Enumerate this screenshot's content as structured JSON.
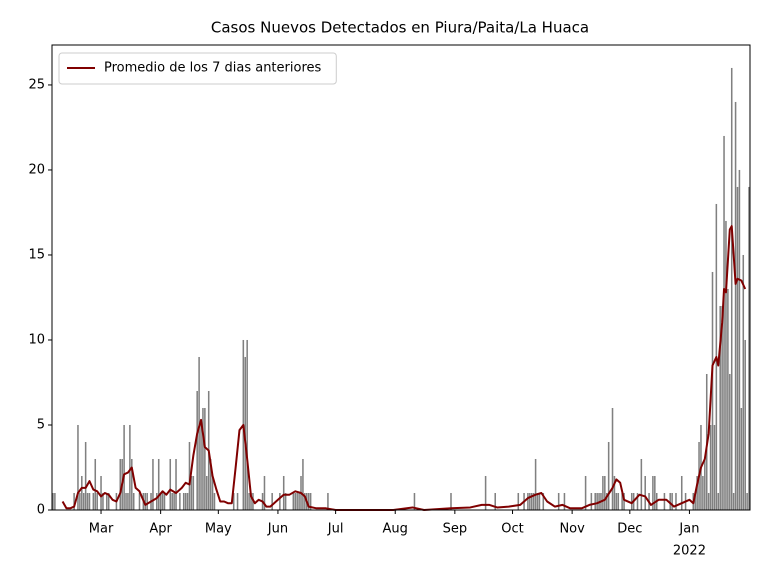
{
  "chart_data": {
    "type": "bar",
    "title": "Casos Nuevos Detectados en Piura/Paita/La Huaca",
    "xlim": [
      2.5,
      365.5
    ],
    "ylim": [
      0,
      27.35
    ],
    "yticks": [
      0,
      5,
      10,
      15,
      20,
      25
    ],
    "xticks": [
      {
        "value": 28,
        "label": "Mar"
      },
      {
        "value": 59,
        "label": "Apr"
      },
      {
        "value": 89,
        "label": "May"
      },
      {
        "value": 120,
        "label": "Jun"
      },
      {
        "value": 150,
        "label": "Jul"
      },
      {
        "value": 181,
        "label": "Aug"
      },
      {
        "value": 212,
        "label": "Sep"
      },
      {
        "value": 242,
        "label": "Oct"
      },
      {
        "value": 273,
        "label": "Nov"
      },
      {
        "value": 303,
        "label": "Dec"
      },
      {
        "value": 334,
        "label": "Jan"
      }
    ],
    "x_year_label": "2022",
    "legend": "upper left",
    "series": [
      {
        "type": "bar",
        "color": "#808080",
        "x": [
          3,
          4,
          5,
          6,
          7,
          8,
          9,
          10,
          11,
          12,
          13,
          14,
          15,
          16,
          17,
          18,
          19,
          20,
          21,
          22,
          23,
          24,
          25,
          26,
          27,
          28,
          29,
          30,
          31,
          32,
          33,
          34,
          35,
          36,
          37,
          38,
          39,
          40,
          41,
          42,
          43,
          44,
          45,
          46,
          47,
          48,
          49,
          50,
          51,
          52,
          53,
          54,
          55,
          56,
          57,
          58,
          59,
          60,
          61,
          62,
          63,
          64,
          65,
          66,
          67,
          68,
          69,
          70,
          71,
          72,
          73,
          74,
          75,
          76,
          77,
          78,
          79,
          80,
          81,
          82,
          83,
          84,
          85,
          86,
          87,
          88,
          89,
          90,
          91,
          92,
          93,
          94,
          95,
          96,
          97,
          98,
          99,
          100,
          101,
          102,
          103,
          104,
          105,
          106,
          107,
          108,
          109,
          110,
          111,
          112,
          113,
          114,
          115,
          116,
          117,
          118,
          119,
          120,
          121,
          122,
          123,
          124,
          125,
          126,
          127,
          128,
          129,
          130,
          131,
          132,
          133,
          134,
          135,
          136,
          137,
          138,
          139,
          140,
          141,
          142,
          143,
          144,
          145,
          146,
          147,
          148,
          149,
          150,
          151,
          152,
          153,
          154,
          155,
          156,
          157,
          158,
          159,
          160,
          161,
          162,
          163,
          164,
          165,
          166,
          167,
          168,
          169,
          170,
          171,
          172,
          173,
          174,
          175,
          176,
          177,
          178,
          179,
          180,
          181,
          182,
          183,
          184,
          185,
          186,
          187,
          188,
          189,
          190,
          191,
          192,
          193,
          194,
          195,
          196,
          197,
          198,
          199,
          200,
          201,
          202,
          203,
          204,
          205,
          206,
          207,
          208,
          209,
          210,
          211,
          212,
          213,
          214,
          215,
          216,
          217,
          218,
          219,
          220,
          221,
          222,
          223,
          224,
          225,
          226,
          227,
          228,
          229,
          230,
          231,
          232,
          233,
          234,
          235,
          236,
          237,
          238,
          239,
          240,
          241,
          242,
          243,
          244,
          245,
          246,
          247,
          248,
          249,
          250,
          251,
          252,
          253,
          254,
          255,
          256,
          257,
          258,
          259,
          260,
          261,
          262,
          263,
          264,
          265,
          266,
          267,
          268,
          269,
          270,
          271,
          272,
          273,
          274,
          275,
          276,
          277,
          278,
          279,
          280,
          281,
          282,
          283,
          284,
          285,
          286,
          287,
          288,
          289,
          290,
          291,
          292,
          293,
          294,
          295,
          296,
          297,
          298,
          299,
          300,
          301,
          302,
          303,
          304,
          305,
          306,
          307,
          308,
          309,
          310,
          311,
          312,
          313,
          314,
          315,
          316,
          317,
          318,
          319,
          320,
          321,
          322,
          323,
          324,
          325,
          326,
          327,
          328,
          329,
          330,
          331,
          332,
          333,
          334,
          335,
          336,
          337,
          338,
          339,
          340,
          341,
          342,
          343,
          344,
          345,
          346,
          347,
          348,
          349,
          350,
          351,
          352,
          353,
          354,
          355,
          356,
          357,
          358,
          359,
          360,
          361,
          362,
          363,
          364,
          365
        ],
        "values": [
          1,
          1,
          0,
          0,
          0,
          0,
          0,
          0,
          0,
          0,
          0,
          1,
          0,
          5,
          1,
          2,
          1,
          4,
          1,
          1,
          0,
          1,
          3,
          1,
          0,
          2,
          1,
          0,
          1,
          1,
          0,
          0,
          0,
          1,
          0,
          3,
          3,
          5,
          1,
          1,
          5,
          3,
          1,
          0,
          0,
          1,
          0,
          1,
          1,
          1,
          0,
          1,
          3,
          0,
          1,
          3,
          1,
          1,
          1,
          0,
          0,
          3,
          1,
          1,
          3,
          0,
          1,
          0,
          1,
          1,
          1,
          4,
          2,
          2,
          0,
          7,
          9,
          5,
          6,
          6,
          2,
          7,
          3,
          2,
          1,
          0,
          0,
          0,
          0,
          0,
          0,
          0,
          0,
          0,
          1,
          0,
          1,
          0,
          0,
          10,
          9,
          10,
          1,
          1,
          1,
          0,
          0,
          0,
          0,
          1,
          2,
          0,
          0,
          0,
          1,
          0,
          0,
          0,
          1,
          0,
          2,
          1,
          0,
          0,
          0,
          1,
          1,
          1,
          1,
          2,
          3,
          1,
          1,
          1,
          1,
          0,
          0,
          0,
          0,
          0,
          0,
          0,
          0,
          1,
          0,
          0,
          0,
          0,
          0,
          0,
          0,
          0,
          0,
          0,
          0,
          0,
          0,
          0,
          0,
          0,
          0,
          0,
          0,
          0,
          0,
          0,
          0,
          0,
          0,
          0,
          0,
          0,
          0,
          0,
          0,
          0,
          0,
          0,
          0,
          0,
          0,
          0,
          0,
          0,
          0,
          0,
          0,
          0,
          1,
          0,
          0,
          0,
          0,
          0,
          0,
          0,
          0,
          0,
          0,
          0,
          0,
          0,
          0,
          0,
          0,
          0,
          0,
          1,
          0,
          0,
          0,
          0,
          0,
          0,
          0,
          0,
          0,
          0,
          0,
          0,
          0,
          0,
          0,
          0,
          0,
          2,
          0,
          0,
          0,
          0,
          1,
          0,
          0,
          0,
          0,
          0,
          0,
          0,
          0,
          0,
          0,
          0,
          1,
          0,
          0,
          1,
          0,
          1,
          1,
          1,
          1,
          3,
          1,
          1,
          0,
          1,
          0,
          0,
          0,
          0,
          0,
          0,
          0,
          1,
          0,
          0,
          1,
          0,
          0,
          0,
          0,
          0,
          0,
          0,
          0,
          0,
          0,
          2,
          0,
          0,
          1,
          0,
          1,
          1,
          1,
          1,
          2,
          2,
          1,
          4,
          0,
          6,
          2,
          1,
          1,
          0,
          1,
          1,
          0,
          0,
          0,
          1,
          1,
          0,
          1,
          0,
          3,
          0,
          2,
          0,
          1,
          0,
          2,
          2,
          1,
          0,
          0,
          0,
          1,
          0,
          0,
          1,
          1,
          0,
          1,
          0,
          0,
          2,
          0,
          1,
          0,
          0,
          0,
          1,
          1,
          2,
          4,
          5,
          2,
          3,
          8,
          1,
          5,
          14,
          5,
          18,
          1,
          12,
          12,
          22,
          17,
          13,
          8,
          26,
          1,
          24,
          19,
          20,
          6,
          15,
          10,
          1,
          19
        ]
      },
      {
        "type": "line",
        "name": "Promedio de los 7 dias anteriores",
        "color": "#800000",
        "x": [
          8,
          10,
          12,
          14,
          16,
          18,
          20,
          22,
          24,
          26,
          28,
          30,
          32,
          34,
          36,
          38,
          40,
          42,
          44,
          46,
          48,
          51,
          54,
          57,
          60,
          62,
          64,
          67,
          70,
          72,
          74,
          76,
          78,
          80,
          82,
          84,
          86,
          88,
          90,
          92,
          94,
          96,
          98,
          100,
          102,
          104,
          106,
          108,
          110,
          112,
          114,
          116,
          118,
          120,
          123,
          126,
          129,
          132,
          134,
          136,
          140,
          145,
          150,
          180,
          190,
          196,
          210,
          220,
          226,
          230,
          234,
          240,
          246,
          250,
          254,
          257,
          260,
          264,
          268,
          272,
          278,
          282,
          286,
          290,
          294,
          296,
          298,
          300,
          304,
          308,
          311,
          314,
          318,
          322,
          326,
          330,
          334,
          336,
          338,
          340,
          342,
          344,
          346,
          348,
          349,
          351,
          352,
          353,
          355,
          356,
          357,
          358,
          359,
          361,
          363
        ],
        "values": [
          0.5,
          0.1,
          0.1,
          0.2,
          1.0,
          1.3,
          1.3,
          1.7,
          1.2,
          1.1,
          0.8,
          1.0,
          0.9,
          0.6,
          0.5,
          1.0,
          2.1,
          2.2,
          2.5,
          1.3,
          1.1,
          0.3,
          0.5,
          0.7,
          1.1,
          0.9,
          1.2,
          1.0,
          1.3,
          1.6,
          1.5,
          3.2,
          4.5,
          5.3,
          3.7,
          3.5,
          2.0,
          1.2,
          0.5,
          0.5,
          0.4,
          0.4,
          2.5,
          4.7,
          5.0,
          3.0,
          0.8,
          0.4,
          0.6,
          0.5,
          0.2,
          0.2,
          0.4,
          0.6,
          0.9,
          0.9,
          1.1,
          1.0,
          0.8,
          0.2,
          0.1,
          0.1,
          0.0,
          0.0,
          0.15,
          0.0,
          0.1,
          0.15,
          0.3,
          0.3,
          0.15,
          0.2,
          0.3,
          0.7,
          0.9,
          1.0,
          0.5,
          0.2,
          0.3,
          0.1,
          0.1,
          0.3,
          0.4,
          0.6,
          1.3,
          1.8,
          1.6,
          0.6,
          0.4,
          0.9,
          0.8,
          0.3,
          0.6,
          0.6,
          0.2,
          0.4,
          0.6,
          0.4,
          1.5,
          2.5,
          3.0,
          4.5,
          8.5,
          9.0,
          8.5,
          11.0,
          13.0,
          12.8,
          16.5,
          16.7,
          15.0,
          13.3,
          13.6,
          13.5,
          13.0
        ]
      }
    ]
  }
}
